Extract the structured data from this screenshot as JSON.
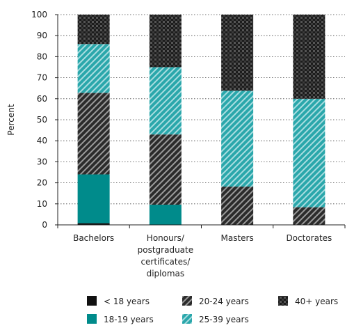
{
  "chart_data": {
    "type": "bar",
    "stacked": true,
    "title": "",
    "xlabel": "",
    "ylabel": "Percent",
    "ylim": [
      0,
      100
    ],
    "yticks": [
      0,
      10,
      20,
      30,
      40,
      50,
      60,
      70,
      80,
      90,
      100
    ],
    "grid": "horizontal-dotted",
    "legend_position": "bottom",
    "categories": [
      [
        "Bachelors"
      ],
      [
        "Honours/",
        "postgraduate",
        "certificates/",
        "diplomas"
      ],
      [
        "Masters"
      ],
      [
        "Doctorates"
      ]
    ],
    "series": [
      {
        "name": "< 18 years",
        "values": [
          0.8,
          0,
          0,
          0
        ],
        "color": "#111111",
        "pattern": "solid"
      },
      {
        "name": "18-19 years",
        "values": [
          23.2,
          9.6,
          0,
          0
        ],
        "color": "#008b8b",
        "pattern": "solid"
      },
      {
        "name": "20-24 years",
        "values": [
          38.8,
          33.4,
          18.2,
          8.4
        ],
        "color": "#333333",
        "pattern": "dark-hatch"
      },
      {
        "name": "25-39 years",
        "values": [
          23.2,
          32.0,
          45.6,
          51.6
        ],
        "color": "#1aa3a8",
        "pattern": "teal-hatch"
      },
      {
        "name": "40+ years",
        "values": [
          14.0,
          25.0,
          36.2,
          40.0
        ],
        "color": "#222222",
        "pattern": "dark-check"
      }
    ]
  }
}
